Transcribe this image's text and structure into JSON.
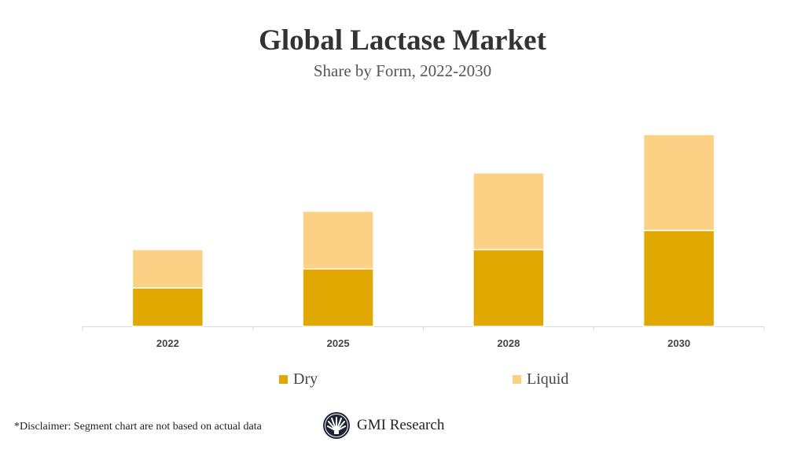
{
  "chart_data": {
    "type": "bar",
    "stacked": true,
    "title": "Global Lactase Market",
    "subtitle": "Share by Form, 2022-2030",
    "categories": [
      "2022",
      "2025",
      "2028",
      "2030"
    ],
    "series": [
      {
        "name": "Dry",
        "values": [
          2,
          3,
          4,
          5
        ],
        "color": "#E0A800"
      },
      {
        "name": "Liquid",
        "values": [
          2,
          3,
          4,
          5
        ],
        "color": "#FDD185"
      }
    ],
    "ylim": [
      0,
      10
    ],
    "grid": false,
    "legend_position": "bottom"
  },
  "footer": {
    "disclaimer": "*Disclaimer:  Segment chart are not based on actual data",
    "logo_text": "GMI Research"
  }
}
